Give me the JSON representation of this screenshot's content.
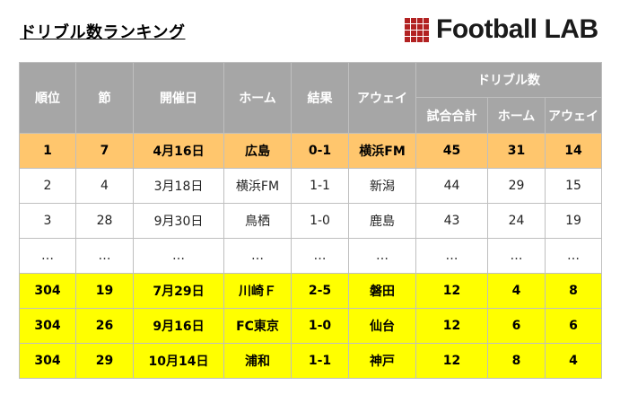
{
  "title": "ドリブル数ランキング",
  "logo": {
    "text": "Football LAB"
  },
  "colors": {
    "header_bg": "#a6a6a6",
    "highlight_top": "#ffc66d",
    "highlight_bottom": "#ffff00",
    "logo_red": "#b22222"
  },
  "table": {
    "headers": {
      "rank": "順位",
      "section": "節",
      "date": "開催日",
      "home": "ホーム",
      "result": "結果",
      "away": "アウェイ",
      "dribble_group": "ドリブル数",
      "total": "試合合計",
      "dribble_home": "ホーム",
      "dribble_away": "アウェイ"
    },
    "rows": [
      {
        "style": "orange",
        "cells": [
          "1",
          "7",
          "4月16日",
          "広島",
          "0-1",
          "横浜FM",
          "45",
          "31",
          "14"
        ]
      },
      {
        "style": "white",
        "cells": [
          "2",
          "4",
          "3月18日",
          "横浜FM",
          "1-1",
          "新潟",
          "44",
          "29",
          "15"
        ]
      },
      {
        "style": "white",
        "cells": [
          "3",
          "28",
          "9月30日",
          "鳥栖",
          "1-0",
          "鹿島",
          "43",
          "24",
          "19"
        ]
      },
      {
        "style": "white",
        "cells": [
          "…",
          "…",
          "…",
          "…",
          "…",
          "…",
          "…",
          "…",
          "…"
        ]
      },
      {
        "style": "yellow",
        "cells": [
          "304",
          "19",
          "7月29日",
          "川崎Ｆ",
          "2-5",
          "磐田",
          "12",
          "4",
          "8"
        ]
      },
      {
        "style": "yellow",
        "cells": [
          "304",
          "26",
          "9月16日",
          "FC東京",
          "1-0",
          "仙台",
          "12",
          "6",
          "6"
        ]
      },
      {
        "style": "yellow",
        "cells": [
          "304",
          "29",
          "10月14日",
          "浦和",
          "1-1",
          "神戸",
          "12",
          "8",
          "4"
        ]
      }
    ]
  }
}
